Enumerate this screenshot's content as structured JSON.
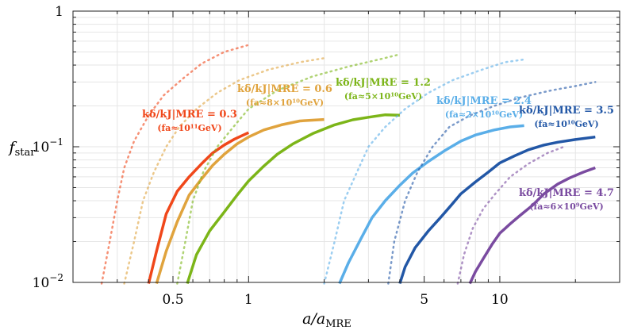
{
  "chart_data": {
    "type": "line",
    "title": "",
    "xlabel": "a/a_MRE",
    "xlabel_main": "a/a",
    "xlabel_sub": "MRE",
    "ylabel": "f_star",
    "ylabel_main": "f",
    "ylabel_sub": "star",
    "xscale": "log",
    "yscale": "log",
    "xlim": [
      0.2,
      30
    ],
    "ylim": [
      0.01,
      1
    ],
    "grid": true,
    "x_ticks": [
      {
        "value": 0.5,
        "label": "0.5"
      },
      {
        "value": 1,
        "label": "1"
      },
      {
        "value": 5,
        "label": "5"
      },
      {
        "value": 10,
        "label": "10"
      }
    ],
    "y_ticks": [
      {
        "value": 0.01,
        "label": "10",
        "exp": "−2"
      },
      {
        "value": 0.1,
        "label": "10",
        "exp": "−1"
      },
      {
        "value": 1,
        "label": "1",
        "exp": ""
      }
    ],
    "series": [
      {
        "name": "k_δ/k_J|MRE = 0.3",
        "label_main": "kδ/kJ|MRE = 0.3",
        "label_sub": "(fa≈10¹¹GeV)",
        "color": "#F0471A",
        "points": [
          [
            0.4,
            0.0098
          ],
          [
            0.43,
            0.017
          ],
          [
            0.47,
            0.032
          ],
          [
            0.52,
            0.047
          ],
          [
            0.58,
            0.06
          ],
          [
            0.65,
            0.075
          ],
          [
            0.72,
            0.09
          ],
          [
            0.8,
            0.103
          ],
          [
            0.88,
            0.114
          ],
          [
            1.0,
            0.127
          ]
        ],
        "dotted": [
          [
            0.26,
            0.0098
          ],
          [
            0.28,
            0.02
          ],
          [
            0.3,
            0.04
          ],
          [
            0.32,
            0.07
          ],
          [
            0.35,
            0.11
          ],
          [
            0.4,
            0.17
          ],
          [
            0.46,
            0.24
          ],
          [
            0.55,
            0.32
          ],
          [
            0.65,
            0.41
          ],
          [
            0.8,
            0.5
          ],
          [
            0.99,
            0.56
          ]
        ]
      },
      {
        "name": "k_δ/k_J|MRE = 0.6",
        "label_main": "kδ/kJ|MRE = 0.6",
        "label_sub": "(fa≈8×10¹⁰GeV)",
        "color": "#E0A33D",
        "points": [
          [
            0.43,
            0.0098
          ],
          [
            0.47,
            0.017
          ],
          [
            0.52,
            0.028
          ],
          [
            0.58,
            0.044
          ],
          [
            0.65,
            0.058
          ],
          [
            0.72,
            0.073
          ],
          [
            0.8,
            0.088
          ],
          [
            0.9,
            0.105
          ],
          [
            1.0,
            0.118
          ],
          [
            1.15,
            0.133
          ],
          [
            1.35,
            0.145
          ],
          [
            1.6,
            0.155
          ],
          [
            2.0,
            0.159
          ]
        ],
        "dotted": [
          [
            0.32,
            0.0098
          ],
          [
            0.35,
            0.02
          ],
          [
            0.38,
            0.04
          ],
          [
            0.42,
            0.065
          ],
          [
            0.47,
            0.1
          ],
          [
            0.53,
            0.14
          ],
          [
            0.62,
            0.19
          ],
          [
            0.75,
            0.25
          ],
          [
            0.92,
            0.31
          ],
          [
            1.2,
            0.37
          ],
          [
            1.6,
            0.42
          ],
          [
            2.0,
            0.45
          ]
        ]
      },
      {
        "name": "k_δ/k_J|MRE = 1.2",
        "label_main": "kδ/kJ|MRE = 1.2",
        "label_sub": "(fa≈5×10¹⁰GeV)",
        "color": "#7CB518",
        "points": [
          [
            0.57,
            0.0098
          ],
          [
            0.62,
            0.016
          ],
          [
            0.7,
            0.024
          ],
          [
            0.8,
            0.033
          ],
          [
            0.9,
            0.044
          ],
          [
            1.0,
            0.056
          ],
          [
            1.15,
            0.072
          ],
          [
            1.3,
            0.088
          ],
          [
            1.5,
            0.105
          ],
          [
            1.8,
            0.125
          ],
          [
            2.2,
            0.145
          ],
          [
            2.6,
            0.158
          ],
          [
            3.0,
            0.165
          ],
          [
            3.5,
            0.172
          ],
          [
            4.0,
            0.171
          ]
        ],
        "dotted": [
          [
            0.52,
            0.0098
          ],
          [
            0.56,
            0.02
          ],
          [
            0.6,
            0.04
          ],
          [
            0.66,
            0.065
          ],
          [
            0.75,
            0.1
          ],
          [
            0.87,
            0.14
          ],
          [
            1.0,
            0.19
          ],
          [
            1.3,
            0.26
          ],
          [
            1.8,
            0.33
          ],
          [
            2.5,
            0.39
          ],
          [
            3.3,
            0.44
          ],
          [
            4.0,
            0.48
          ]
        ]
      },
      {
        "name": "k_δ/k_J|MRE = 2.4",
        "label_main": "kδ/kJ|MRE = 2.4",
        "label_sub": "(fa≈2×10¹⁰GeV)",
        "color": "#5AAEE8",
        "points": [
          [
            2.3,
            0.0098
          ],
          [
            2.5,
            0.014
          ],
          [
            2.8,
            0.021
          ],
          [
            3.1,
            0.03
          ],
          [
            3.5,
            0.04
          ],
          [
            4.0,
            0.052
          ],
          [
            4.5,
            0.064
          ],
          [
            5.2,
            0.078
          ],
          [
            6.0,
            0.093
          ],
          [
            7.0,
            0.11
          ],
          [
            8.0,
            0.122
          ],
          [
            9.5,
            0.133
          ],
          [
            11.0,
            0.14
          ],
          [
            12.5,
            0.143
          ]
        ],
        "dotted": [
          [
            2.0,
            0.0098
          ],
          [
            2.2,
            0.02
          ],
          [
            2.4,
            0.04
          ],
          [
            2.7,
            0.065
          ],
          [
            3.0,
            0.1
          ],
          [
            3.5,
            0.14
          ],
          [
            4.2,
            0.19
          ],
          [
            5.2,
            0.25
          ],
          [
            6.5,
            0.31
          ],
          [
            8.5,
            0.37
          ],
          [
            10.5,
            0.42
          ],
          [
            12.5,
            0.44
          ]
        ]
      },
      {
        "name": "k_δ/k_J|MRE = 3.5",
        "label_main": "kδ/kJ|MRE = 3.5",
        "label_sub": "(fa≈10¹⁰GeV)",
        "color": "#2257A6",
        "points": [
          [
            4.0,
            0.0098
          ],
          [
            4.2,
            0.013
          ],
          [
            4.6,
            0.018
          ],
          [
            5.2,
            0.024
          ],
          [
            5.8,
            0.03
          ],
          [
            6.4,
            0.037
          ],
          [
            7.0,
            0.045
          ],
          [
            8.0,
            0.055
          ],
          [
            9.0,
            0.065
          ],
          [
            10.0,
            0.076
          ],
          [
            11.5,
            0.086
          ],
          [
            13.0,
            0.095
          ],
          [
            15.0,
            0.103
          ],
          [
            17.0,
            0.108
          ],
          [
            20.0,
            0.113
          ],
          [
            24.0,
            0.118
          ]
        ],
        "dotted": [
          [
            3.6,
            0.0098
          ],
          [
            3.8,
            0.02
          ],
          [
            4.2,
            0.04
          ],
          [
            4.7,
            0.065
          ],
          [
            5.4,
            0.1
          ],
          [
            6.3,
            0.14
          ],
          [
            7.6,
            0.17
          ],
          [
            9.5,
            0.2
          ],
          [
            12.0,
            0.23
          ],
          [
            16.0,
            0.26
          ],
          [
            20.0,
            0.28
          ],
          [
            24.0,
            0.3
          ]
        ]
      },
      {
        "name": "k_δ/k_J|MRE = 4.7",
        "label_main": "kδ/kJ|MRE = 4.7",
        "label_sub": "(fa≈6×10⁹GeV)",
        "color": "#7A4BA0",
        "points": [
          [
            7.6,
            0.0098
          ],
          [
            8.0,
            0.012
          ],
          [
            8.6,
            0.015
          ],
          [
            9.3,
            0.019
          ],
          [
            10.0,
            0.023
          ],
          [
            11.0,
            0.027
          ],
          [
            12.0,
            0.031
          ],
          [
            13.5,
            0.037
          ],
          [
            15.0,
            0.045
          ],
          [
            17.0,
            0.053
          ],
          [
            19.0,
            0.059
          ],
          [
            21.5,
            0.065
          ],
          [
            24.0,
            0.07
          ]
        ],
        "dotted": [
          [
            6.8,
            0.0098
          ],
          [
            7.2,
            0.016
          ],
          [
            7.8,
            0.025
          ],
          [
            8.6,
            0.035
          ],
          [
            9.6,
            0.045
          ],
          [
            11.0,
            0.06
          ],
          [
            13.0,
            0.075
          ],
          [
            15.5,
            0.09
          ],
          [
            18.0,
            0.1
          ]
        ]
      }
    ]
  }
}
